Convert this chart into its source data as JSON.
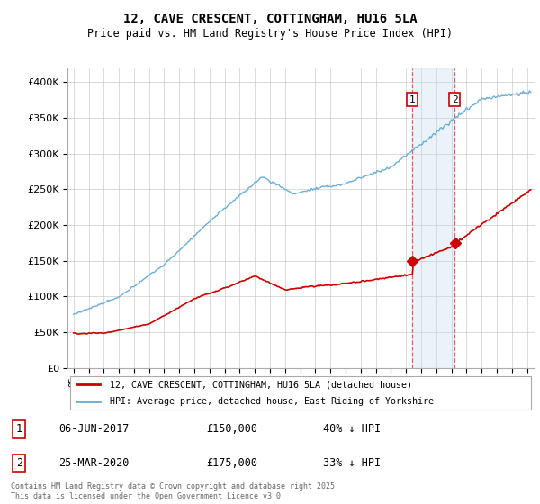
{
  "title": "12, CAVE CRESCENT, COTTINGHAM, HU16 5LA",
  "subtitle": "Price paid vs. HM Land Registry's House Price Index (HPI)",
  "legend_line1": "12, CAVE CRESCENT, COTTINGHAM, HU16 5LA (detached house)",
  "legend_line2": "HPI: Average price, detached house, East Riding of Yorkshire",
  "transaction1_date": "06-JUN-2017",
  "transaction1_price": "£150,000",
  "transaction1_hpi": "40% ↓ HPI",
  "transaction2_date": "25-MAR-2020",
  "transaction2_price": "£175,000",
  "transaction2_hpi": "33% ↓ HPI",
  "footnote": "Contains HM Land Registry data © Crown copyright and database right 2025.\nThis data is licensed under the Open Government Licence v3.0.",
  "hpi_color": "#6baed6",
  "price_color": "#cc0000",
  "vline_color": "#cc0000",
  "shade_color": "#c6dbef",
  "shade_alpha": 0.35,
  "ylim": [
    0,
    420000
  ],
  "yticks": [
    0,
    50000,
    100000,
    150000,
    200000,
    250000,
    300000,
    350000,
    400000
  ],
  "background_color": "#ffffff",
  "grid_color": "#cccccc",
  "t1_year": 2017.42,
  "t2_year": 2020.21,
  "t1_price": 150000,
  "t2_price": 175000
}
